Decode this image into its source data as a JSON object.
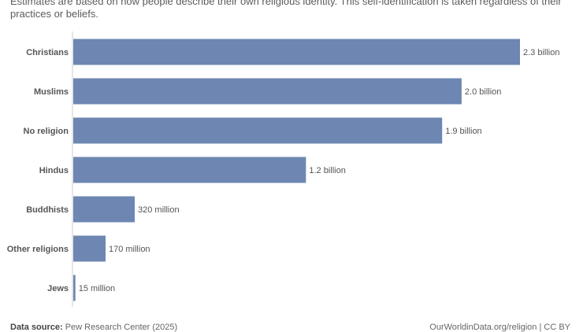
{
  "subtitle": "Estimates are based on how people describe their own religious identity. This self-identification is taken regardless of their practices or beliefs.",
  "footer": {
    "source_label": "Data source:",
    "source_value": "Pew Research Center (2025)",
    "credit": "OurWorldinData.org/religion | CC BY"
  },
  "colors": {
    "bar": "#6d87b2",
    "axis": "#cccccc"
  },
  "chart_data": {
    "type": "bar",
    "orientation": "horizontal",
    "categories": [
      "Christians",
      "Muslims",
      "No religion",
      "Hindus",
      "Buddhists",
      "Other religions",
      "Jews"
    ],
    "values": [
      2300000000,
      2000000000,
      1900000000,
      1200000000,
      320000000,
      170000000,
      15000000
    ],
    "value_labels": [
      "2.3 billion",
      "2.0 billion",
      "1.9 billion",
      "1.2 billion",
      "320 million",
      "170 million",
      "15 million"
    ],
    "xlim": [
      0,
      2300000000
    ],
    "title": "",
    "xlabel": "",
    "ylabel": ""
  }
}
